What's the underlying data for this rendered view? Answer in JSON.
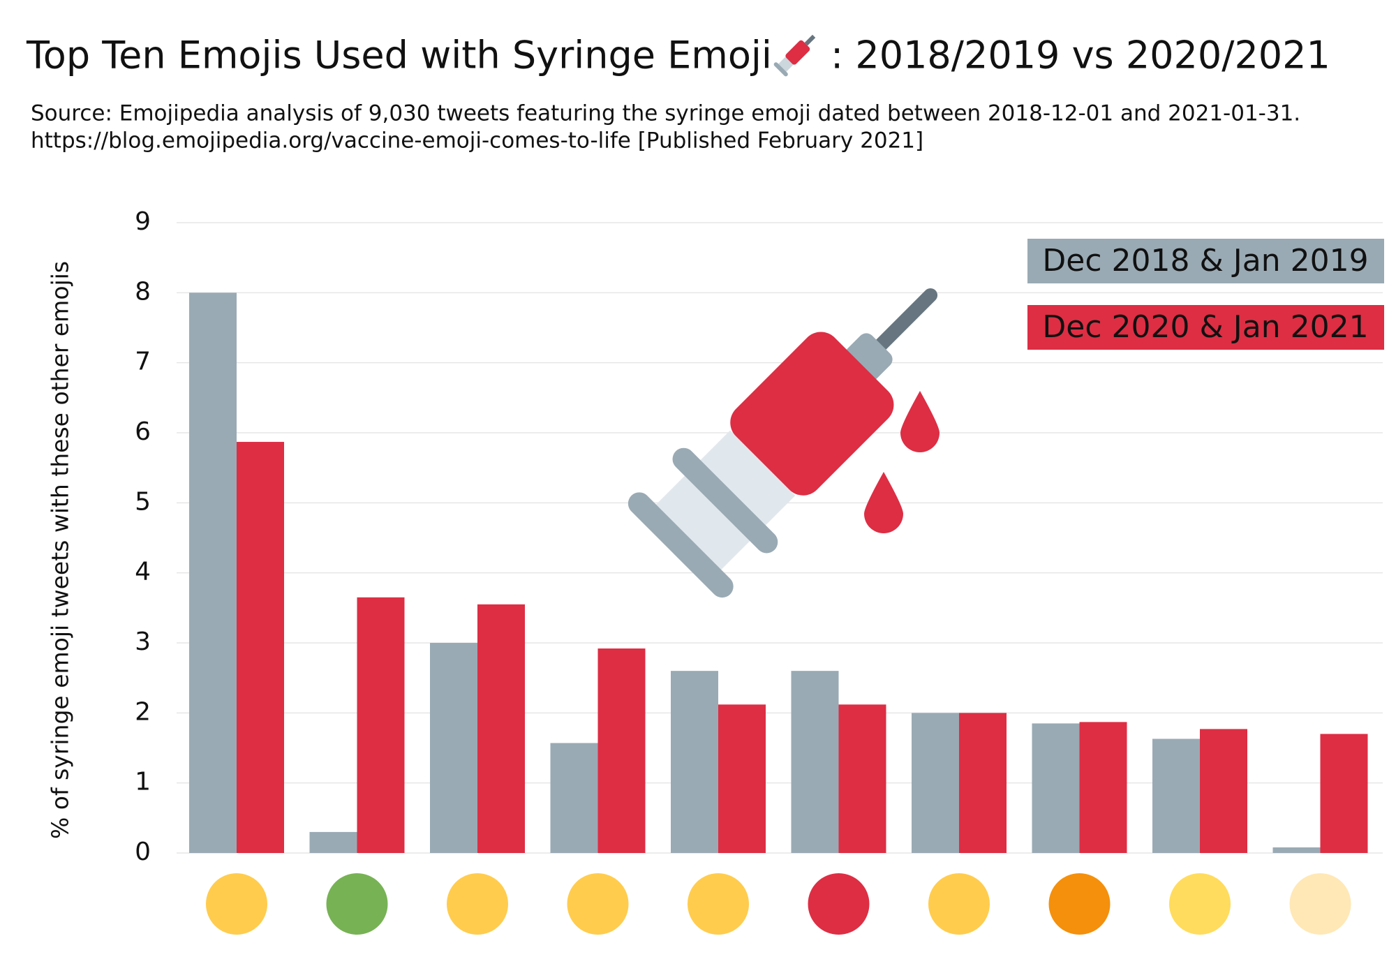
{
  "chart_data": {
    "type": "bar",
    "title": "Top Ten Emojis Used with Syringe Emoji",
    "title_suffix": ": 2018/2019 vs 2020/2021",
    "subtitle": [
      "Source: Emojipedia analysis of 9,030 tweets featuring the syringe emoji dated between 2018-12-01 and 2021-01-31.",
      "https://blog.emojipedia.org/vaccine-emoji-comes-to-life [Published February 2021]"
    ],
    "y_label": "% of syringe emoji tweets with these other emojis",
    "categories": [
      null,
      null,
      null,
      null,
      null,
      null,
      null,
      null,
      null,
      null
    ],
    "series": [
      {
        "name": "Dec 2018 & Jan 2019",
        "color": "#9aaab4",
        "values": [
          8.0,
          0.3,
          3.0,
          1.57,
          2.6,
          2.6,
          2.0,
          1.85,
          1.63,
          0.08
        ]
      },
      {
        "name": "Dec 2020 & Jan 2021",
        "color": "#dd2e44",
        "values": [
          5.87,
          3.65,
          3.55,
          2.92,
          2.12,
          2.12,
          2.0,
          1.87,
          1.77,
          1.7
        ]
      }
    ],
    "ylim": [
      0,
      9
    ],
    "yticks": [
      0,
      1,
      2,
      3,
      4,
      5,
      6,
      7,
      8,
      9
    ],
    "grid": true,
    "legend": "top-right"
  }
}
